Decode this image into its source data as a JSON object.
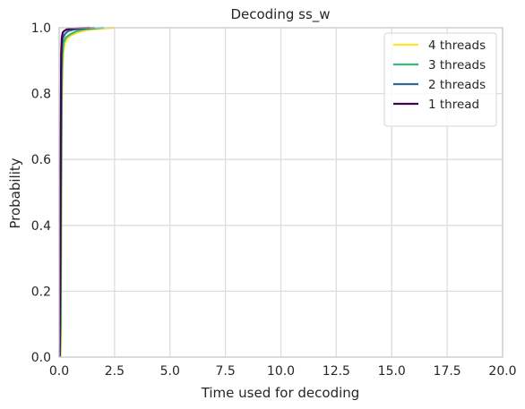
{
  "chart_data": {
    "type": "line",
    "title": "Decoding ss_w",
    "xlabel": "Time used for decoding",
    "ylabel": "Probability",
    "xlim": [
      0,
      20
    ],
    "ylim": [
      0,
      1
    ],
    "xticks": [
      "0.0",
      "2.5",
      "5.0",
      "7.5",
      "10.0",
      "12.5",
      "15.0",
      "17.5",
      "20.0"
    ],
    "xtick_values": [
      0,
      2.5,
      5,
      7.5,
      10,
      12.5,
      15,
      17.5,
      20
    ],
    "yticks": [
      "0.0",
      "0.2",
      "0.4",
      "0.6",
      "0.8",
      "1.0"
    ],
    "ytick_values": [
      0,
      0.2,
      0.4,
      0.6,
      0.8,
      1.0
    ],
    "grid": true,
    "legend_position": "top-right",
    "series": [
      {
        "name": "4 threads",
        "color": "#fde725",
        "x": [
          0.05,
          0.08,
          0.1,
          0.12,
          0.15,
          0.2,
          0.25,
          0.35,
          0.5,
          0.8,
          1.2,
          1.8,
          2.5
        ],
        "y": [
          0.0,
          0.05,
          0.4,
          0.75,
          0.88,
          0.93,
          0.95,
          0.965,
          0.975,
          0.985,
          0.992,
          0.997,
          1.0
        ]
      },
      {
        "name": "3 threads",
        "color": "#35b779",
        "x": [
          0.04,
          0.07,
          0.09,
          0.12,
          0.15,
          0.2,
          0.3,
          0.5,
          0.8,
          1.2,
          2.0
        ],
        "y": [
          0.0,
          0.1,
          0.5,
          0.82,
          0.92,
          0.955,
          0.97,
          0.98,
          0.99,
          0.996,
          1.0
        ]
      },
      {
        "name": "2 threads",
        "color": "#31688e",
        "x": [
          0.03,
          0.06,
          0.08,
          0.1,
          0.13,
          0.18,
          0.25,
          0.4,
          0.7,
          1.0,
          1.6
        ],
        "y": [
          0.0,
          0.2,
          0.6,
          0.88,
          0.95,
          0.97,
          0.98,
          0.99,
          0.995,
          0.998,
          1.0
        ]
      },
      {
        "name": "1 thread",
        "color": "#440154",
        "x": [
          0.02,
          0.05,
          0.07,
          0.09,
          0.12,
          0.16,
          0.22,
          0.35,
          0.6,
          0.9,
          1.4
        ],
        "y": [
          0.0,
          0.3,
          0.7,
          0.92,
          0.97,
          0.985,
          0.99,
          0.995,
          0.998,
          0.999,
          1.0
        ]
      }
    ]
  }
}
